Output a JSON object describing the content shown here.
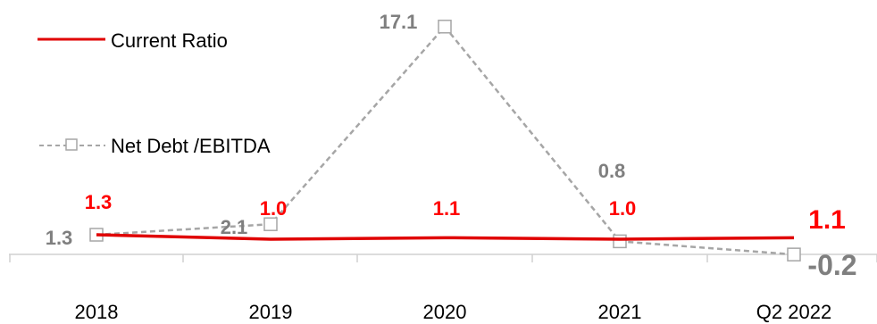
{
  "chart_data": {
    "type": "line",
    "categories": [
      "2018",
      "2019",
      "2020",
      "2021",
      "Q2 2022"
    ],
    "series": [
      {
        "name": "Current Ratio",
        "values": [
          1.3,
          1.0,
          1.1,
          1.0,
          1.1
        ],
        "labels": [
          "1.3",
          "1.0",
          "1.1",
          "1.0",
          "1.1"
        ],
        "color": "#e00000",
        "style": "solid"
      },
      {
        "name": "Net Debt /EBITDA",
        "values": [
          1.3,
          2.1,
          17.1,
          0.8,
          -0.2
        ],
        "labels": [
          "1.3",
          "2.1",
          "17.1",
          "0.8",
          "-0.2"
        ],
        "color": "#a6a6a6",
        "label_color": "#7f7f7f",
        "style": "dashed",
        "marker": "square"
      }
    ],
    "legend_position": "top-left",
    "grid": false
  }
}
